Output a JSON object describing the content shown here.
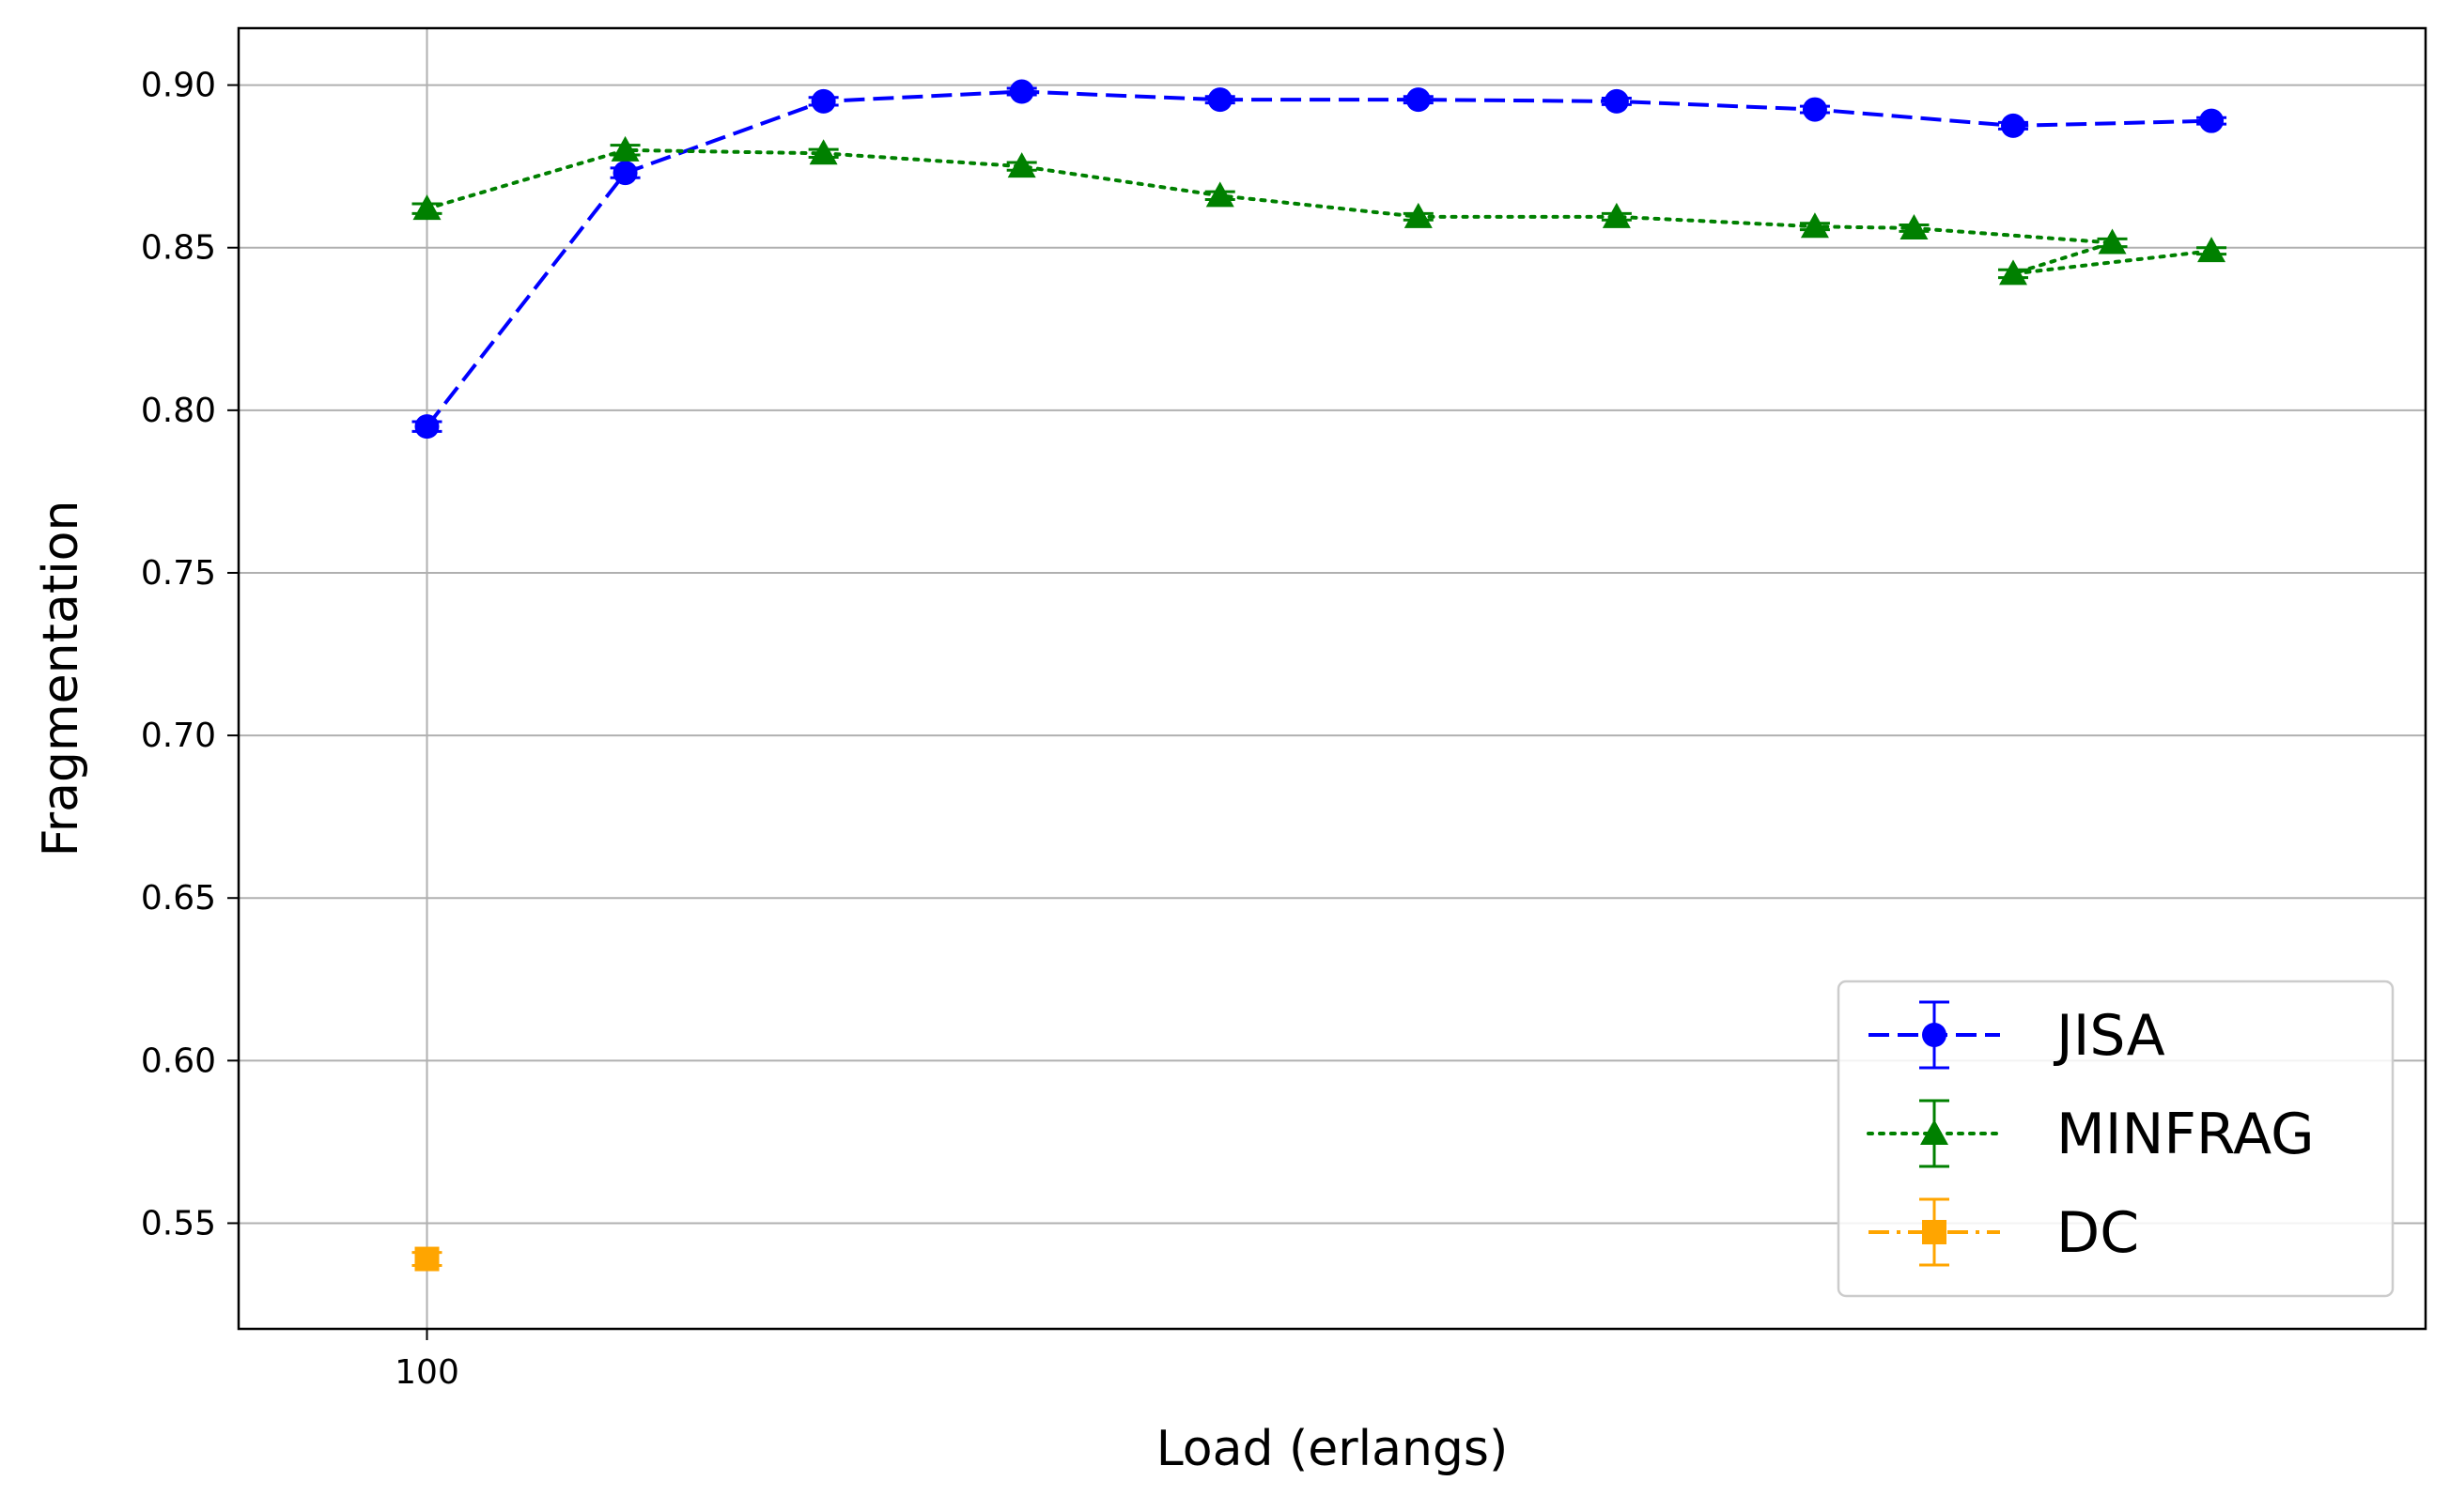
{
  "chart_data": {
    "type": "line",
    "title": "",
    "xlabel": "Load (erlangs)",
    "ylabel": "Fragmentation",
    "xticks": [
      100
    ],
    "yticks": [
      0.55,
      0.6,
      0.65,
      0.7,
      0.75,
      0.8,
      0.85,
      0.9
    ],
    "ytick_labels": [
      "0.55",
      "0.60",
      "0.65",
      "0.70",
      "0.75",
      "0.80",
      "0.85",
      "0.90"
    ],
    "xlim": [
      90.5,
      200.8
    ],
    "ylim": [
      0.5175,
      0.9175
    ],
    "grid": true,
    "legend_position": "lower-right",
    "series": [
      {
        "name": "JISA",
        "color": "#0000ff",
        "line_style": "dashed",
        "marker": "circle",
        "x": [
          100,
          110,
          120,
          130,
          140,
          150,
          160,
          170,
          180,
          190
        ],
        "y": [
          0.795,
          0.873,
          0.895,
          0.898,
          0.8955,
          0.8955,
          0.895,
          0.8925,
          0.8875,
          0.889
        ],
        "err": [
          0.0015,
          0.0015,
          0.0012,
          0.001,
          0.001,
          0.001,
          0.001,
          0.001,
          0.001,
          0.001
        ]
      },
      {
        "name": "MINFRAG",
        "color": "#008000",
        "line_style": "dotted",
        "marker": "triangle",
        "x": [
          100,
          110,
          120,
          130,
          140,
          150,
          160,
          170,
          175,
          185,
          180,
          190
        ],
        "y": [
          0.862,
          0.88,
          0.879,
          0.875,
          0.866,
          0.8595,
          0.8595,
          0.8565,
          0.856,
          0.8515,
          0.842,
          0.849
        ],
        "err": [
          0.0015,
          0.0015,
          0.0012,
          0.0012,
          0.0012,
          0.001,
          0.001,
          0.001,
          0.001,
          0.0012,
          0.0012,
          0.001
        ]
      },
      {
        "name": "DC",
        "color": "#ffa500",
        "line_style": "dashdot",
        "marker": "square",
        "x": [
          100
        ],
        "y": [
          0.539
        ],
        "err": [
          0.002
        ]
      }
    ]
  }
}
